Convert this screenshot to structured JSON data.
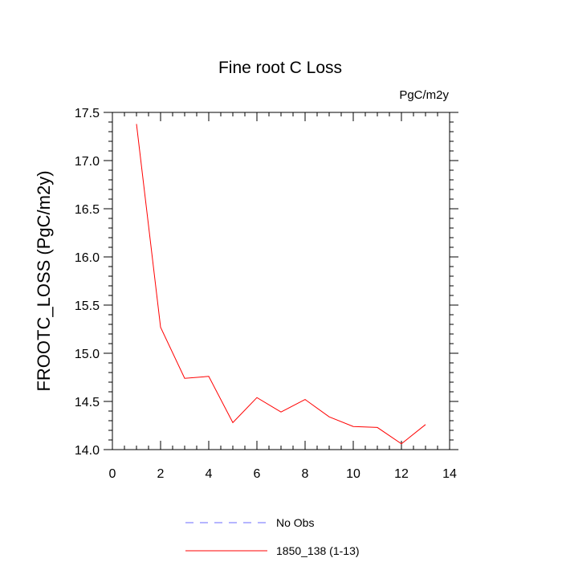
{
  "chart_data": {
    "type": "line",
    "title": "Fine root C Loss",
    "units_label": "PgC/m2y",
    "xlabel": "",
    "ylabel": "FROOTC_LOSS  (PgC/m2y)",
    "xlim": [
      0,
      14
    ],
    "ylim": [
      14.0,
      17.5
    ],
    "x_ticks": [
      0,
      2,
      4,
      6,
      8,
      10,
      12,
      14
    ],
    "x_tick_labels": [
      "0",
      "2",
      "4",
      "6",
      "8",
      "10",
      "12",
      "14"
    ],
    "y_ticks": [
      14.0,
      14.5,
      15.0,
      15.5,
      16.0,
      16.5,
      17.0,
      17.5
    ],
    "y_tick_labels": [
      "14.0",
      "14.5",
      "15.0",
      "15.5",
      "16.0",
      "16.5",
      "17.0",
      "17.5"
    ],
    "grid": false,
    "legend_position": "bottom",
    "series": [
      {
        "name": "No Obs",
        "color": "#6b6bff",
        "style": "dashed",
        "x": [],
        "y": []
      },
      {
        "name": "1850_138 (1-13)",
        "color": "#ff0000",
        "style": "solid",
        "x": [
          1,
          2,
          3,
          4,
          5,
          6,
          7,
          8,
          9,
          10,
          11,
          12,
          13
        ],
        "y": [
          17.38,
          15.27,
          14.74,
          14.76,
          14.28,
          14.54,
          14.39,
          14.52,
          14.34,
          14.24,
          14.23,
          14.06,
          14.26
        ]
      }
    ]
  }
}
